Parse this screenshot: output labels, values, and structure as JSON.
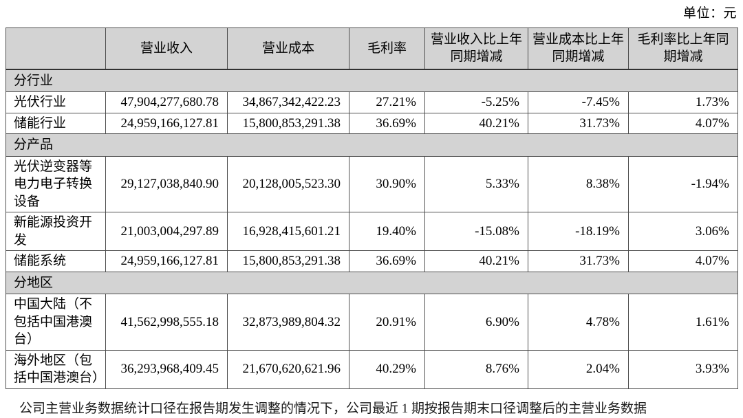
{
  "unit_label": "单位：元",
  "table": {
    "columns": [
      {
        "label": ""
      },
      {
        "label": "营业收入"
      },
      {
        "label": "营业成本"
      },
      {
        "label": "毛利率"
      },
      {
        "label": "营业收入比上年同期增减"
      },
      {
        "label": "营业成本比上年同期增减"
      },
      {
        "label": "毛利率比上年同期增减"
      }
    ],
    "sections": [
      {
        "title": "分行业",
        "rows": [
          {
            "label": "光伏行业",
            "values": [
              "47,904,277,680.78",
              "34,867,342,422.23",
              "27.21%",
              "-5.25%",
              "-7.45%",
              "1.73%"
            ]
          },
          {
            "label": "储能行业",
            "values": [
              "24,959,166,127.81",
              "15,800,853,291.38",
              "36.69%",
              "40.21%",
              "31.73%",
              "4.07%"
            ]
          }
        ]
      },
      {
        "title": "分产品",
        "rows": [
          {
            "label": "光伏逆变器等电力电子转换设备",
            "values": [
              "29,127,038,840.90",
              "20,128,005,523.30",
              "30.90%",
              "5.33%",
              "8.38%",
              "-1.94%"
            ]
          },
          {
            "label": "新能源投资开发",
            "values": [
              "21,003,004,297.89",
              "16,928,415,601.21",
              "19.40%",
              "-15.08%",
              "-18.19%",
              "3.06%"
            ]
          },
          {
            "label": "储能系统",
            "values": [
              "24,959,166,127.81",
              "15,800,853,291.38",
              "36.69%",
              "40.21%",
              "31.73%",
              "4.07%"
            ]
          }
        ]
      },
      {
        "title": "分地区",
        "rows": [
          {
            "label": "中国大陆（不包括中国港澳台）",
            "values": [
              "41,562,998,555.18",
              "32,873,989,804.32",
              "20.91%",
              "6.90%",
              "4.78%",
              "1.61%"
            ]
          },
          {
            "label": "海外地区（包括中国港澳台）",
            "values": [
              "36,293,968,409.45",
              "21,670,620,621.96",
              "40.29%",
              "8.76%",
              "2.04%",
              "3.93%"
            ]
          }
        ]
      }
    ]
  },
  "footnote_clipped": "公司主营业务数据统计口径在报告期发生调整的情况下，公司最近 1 期按报告期末口径调整后的主营业务数据"
}
